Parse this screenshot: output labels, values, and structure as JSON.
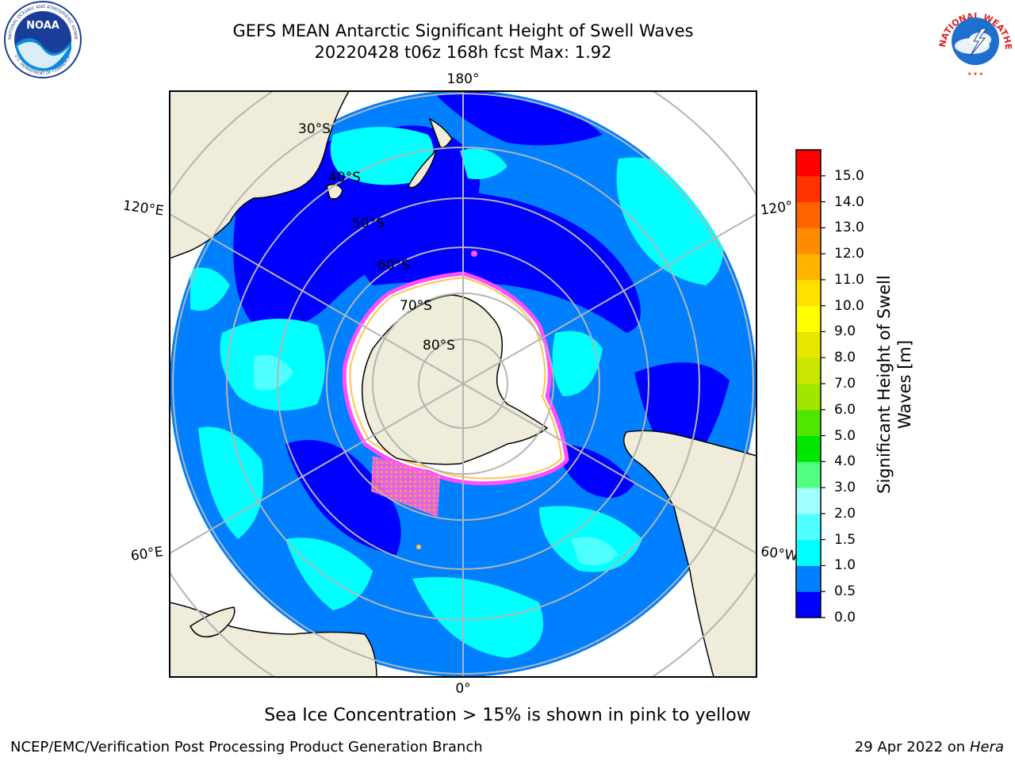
{
  "title": {
    "line1": "GEFS MEAN Antarctic Significant Height of Swell Waves",
    "line2": "20220428 t06z 168h fcst   Max: 1.92"
  },
  "logos": {
    "noaa_text": "NOAA",
    "noaa_ring_text": "NATIONAL OCEANIC AND ATMOSPHERIC ADMINISTRATION",
    "noaa_ring_bottom": "U.S. DEPARTMENT OF COMMERCE",
    "nws_ring_text": "NATIONAL WEATHER SERVICE"
  },
  "map": {
    "projection": "south polar stereographic",
    "longitude_labels": [
      "180°",
      "120°E",
      "120°",
      "60°E",
      "60°W",
      "0°"
    ],
    "latitude_labels": [
      "30°S",
      "40°S",
      "50°S",
      "60°S",
      "70°S",
      "80°S"
    ],
    "colors": {
      "land": "#efecda",
      "grid": "#b4b4b4",
      "ice_edge": "#ff4dff",
      "ice_inner": "#ffc24d",
      "swell_0_0_5": "#0000ff",
      "swell_0_5_1_0": "#0080ff",
      "swell_1_0_1_5": "#00ffff"
    }
  },
  "colorbar": {
    "label": "Significant Height of Swell Waves [m]",
    "label_line1": "Significant Height of Swell",
    "label_line2": "Waves [m]",
    "ticks": [
      "0.0",
      "0.5",
      "1.0",
      "1.5",
      "2.0",
      "3.0",
      "4.0",
      "5.0",
      "6.0",
      "7.0",
      "8.0",
      "9.0",
      "10.0",
      "11.0",
      "12.0",
      "13.0",
      "14.0",
      "15.0"
    ],
    "colors": [
      "#0000ff",
      "#0080ff",
      "#00ffff",
      "#50ffff",
      "#a0ffff",
      "#50ff80",
      "#00e600",
      "#50e600",
      "#a0e600",
      "#c8e600",
      "#e6e600",
      "#ffff00",
      "#ffe100",
      "#ffb400",
      "#ff8c00",
      "#ff6400",
      "#ff3200",
      "#ff0000"
    ]
  },
  "footer": {
    "note": "Sea Ice Concentration > 15% is shown in pink to yellow",
    "credit": "NCEP/EMC/Verification Post Processing Product Generation Branch",
    "date_prefix": "29 Apr 2022 on ",
    "date_host": "Hera"
  }
}
